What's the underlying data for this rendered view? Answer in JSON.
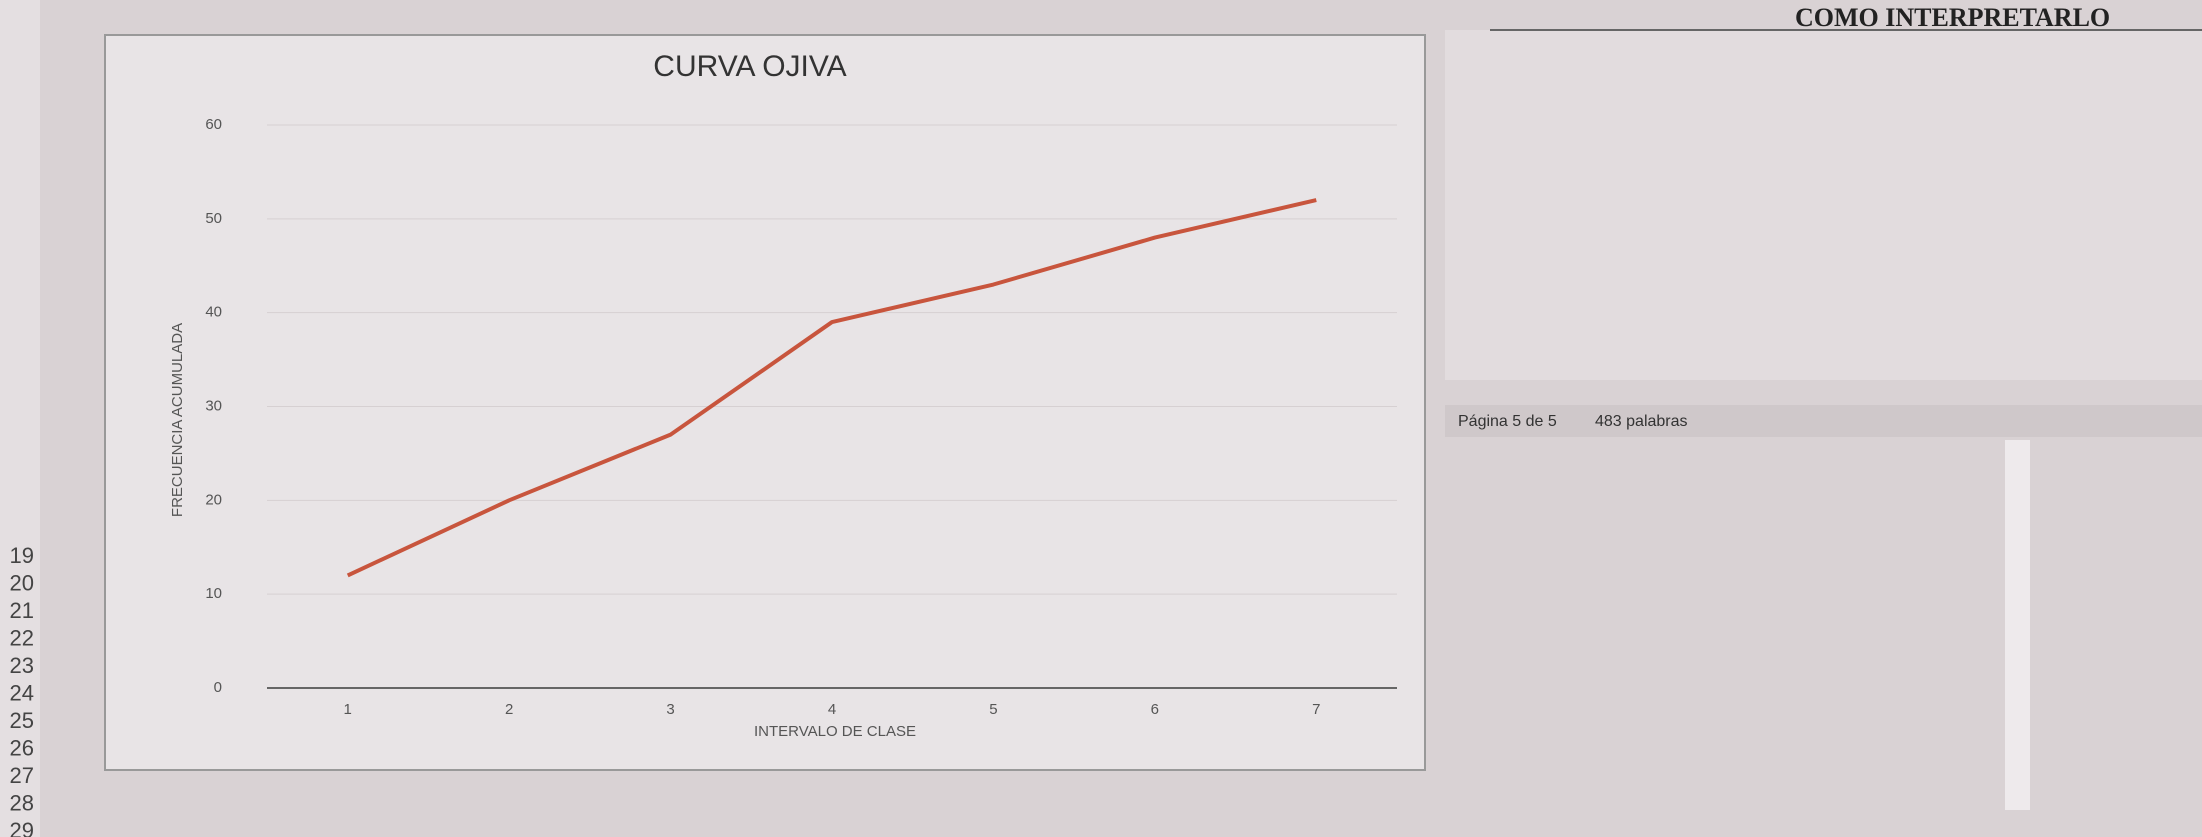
{
  "chart_data": {
    "type": "line",
    "title": "CURVA OJIVA",
    "x_label": "INTERVALO DE CLASE",
    "y_label": "FRECUENCIA ACUMULADA",
    "categories": [
      "1",
      "2",
      "3",
      "4",
      "5",
      "6",
      "7"
    ],
    "series": [
      {
        "name": "FRECUENCIA ACUMULADA",
        "color": "#c8553d",
        "values": [
          12,
          20,
          27,
          39,
          43,
          48,
          52
        ]
      }
    ],
    "ylim": [
      0,
      60
    ],
    "yticks": [
      0,
      10,
      20,
      30,
      40,
      50,
      60
    ],
    "grid": true
  },
  "side_panel": {
    "title": "COMO INTERPRETARLO"
  },
  "status_bar": {
    "page": "Página 5 de 5",
    "words": "483 palabras"
  },
  "row_numbers": [
    "19",
    "20",
    "21",
    "22",
    "23",
    "24",
    "25",
    "26",
    "27",
    "28",
    "29"
  ]
}
